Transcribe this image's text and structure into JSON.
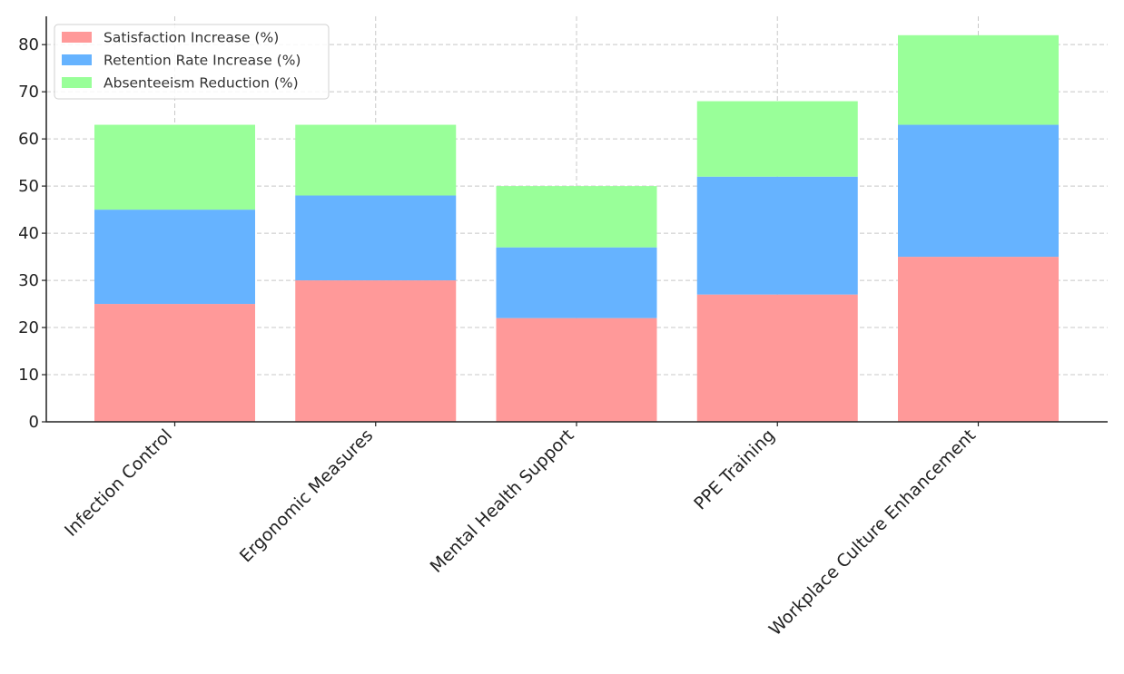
{
  "chart_data": {
    "type": "bar",
    "stacked": true,
    "title": "",
    "xlabel": "",
    "ylabel": "",
    "categories": [
      "Infection Control",
      "Ergonomic Measures",
      "Mental Health Support",
      "PPE Training",
      "Workplace Culture Enhancement"
    ],
    "series": [
      {
        "name": "Satisfaction Increase (%)",
        "values": [
          25,
          30,
          22,
          27,
          35
        ],
        "color": "#ff9999"
      },
      {
        "name": "Retention Rate Increase (%)",
        "values": [
          20,
          18,
          15,
          25,
          28
        ],
        "color": "#66b3ff"
      },
      {
        "name": "Absenteeism Reduction (%)",
        "values": [
          18,
          15,
          13,
          16,
          19
        ],
        "color": "#99ff99"
      }
    ],
    "ylim": [
      0,
      86
    ],
    "yticks": [
      0,
      10,
      20,
      30,
      40,
      50,
      60,
      70,
      80
    ],
    "grid": true,
    "legend_position": "top-left"
  }
}
